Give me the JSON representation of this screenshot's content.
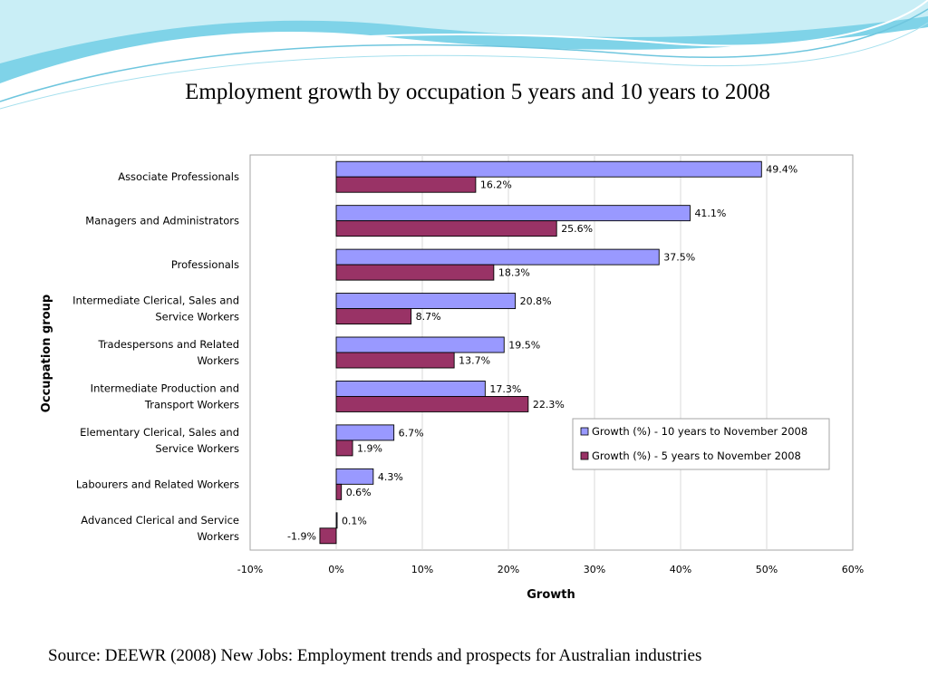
{
  "slide": {
    "title": "Employment growth by occupation 5 years and 10 years to 2008",
    "source": "Source: DEEWR (2008) New Jobs: Employment trends and prospects  for Australian industries",
    "colors": {
      "header_wave": "#7fd3e8",
      "header_wave_light": "#c9eef6"
    }
  },
  "chart_data": {
    "type": "bar",
    "orientation": "horizontal",
    "xlabel": "Growth",
    "ylabel": "Occupation group",
    "xlim": [
      -10,
      60
    ],
    "xtick_step": 10,
    "tick_suffix": "%",
    "grid": true,
    "legend_position": "right",
    "categories": [
      [
        "Associate Professionals"
      ],
      [
        "Managers and Administrators"
      ],
      [
        "Professionals"
      ],
      [
        "Intermediate Clerical, Sales and",
        "Service Workers"
      ],
      [
        "Tradespersons and Related",
        "Workers"
      ],
      [
        "Intermediate Production and",
        "Transport Workers"
      ],
      [
        "Elementary Clerical, Sales and",
        "Service Workers"
      ],
      [
        "Labourers and Related Workers"
      ],
      [
        "Advanced Clerical and Service",
        "Workers"
      ]
    ],
    "series": [
      {
        "name": "Growth (%) - 10 years to November 2008",
        "color": "#9999ff",
        "values": [
          49.4,
          41.1,
          37.5,
          20.8,
          19.5,
          17.3,
          6.7,
          4.3,
          0.1
        ]
      },
      {
        "name": "Growth (%) - 5 years to November 2008",
        "color": "#993366",
        "values": [
          16.2,
          25.6,
          18.3,
          8.7,
          13.7,
          22.3,
          1.9,
          0.6,
          -1.9
        ]
      }
    ]
  }
}
